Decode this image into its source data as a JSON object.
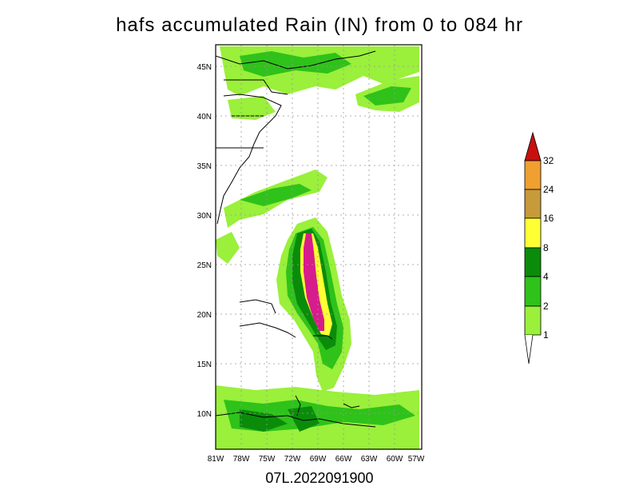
{
  "title": "hafs accumulated Rain (IN) from 0 to 084 hr",
  "footer": "07L.2022091900",
  "map": {
    "lat_labels": [
      "45N",
      "40N",
      "35N",
      "30N",
      "25N",
      "20N",
      "15N",
      "10N"
    ],
    "lon_labels": [
      "81W",
      "78W",
      "75W",
      "72W",
      "69W",
      "66W",
      "63W",
      "60W",
      "57W"
    ]
  },
  "colorbar": {
    "levels": [
      "1",
      "2",
      "4",
      "8",
      "16",
      "24",
      "32"
    ],
    "colors": [
      "#9AF03A",
      "#2FC21A",
      "#0A8C0A",
      "#FFFF33",
      "#C79A3A",
      "#EFA030",
      "#C80F0F"
    ]
  },
  "colors": {
    "light_green": "#9AF03A",
    "mid_green": "#2FC21A",
    "dark_green": "#0A8C0A",
    "yellow": "#FFFF33",
    "magenta": "#D71C8C"
  }
}
